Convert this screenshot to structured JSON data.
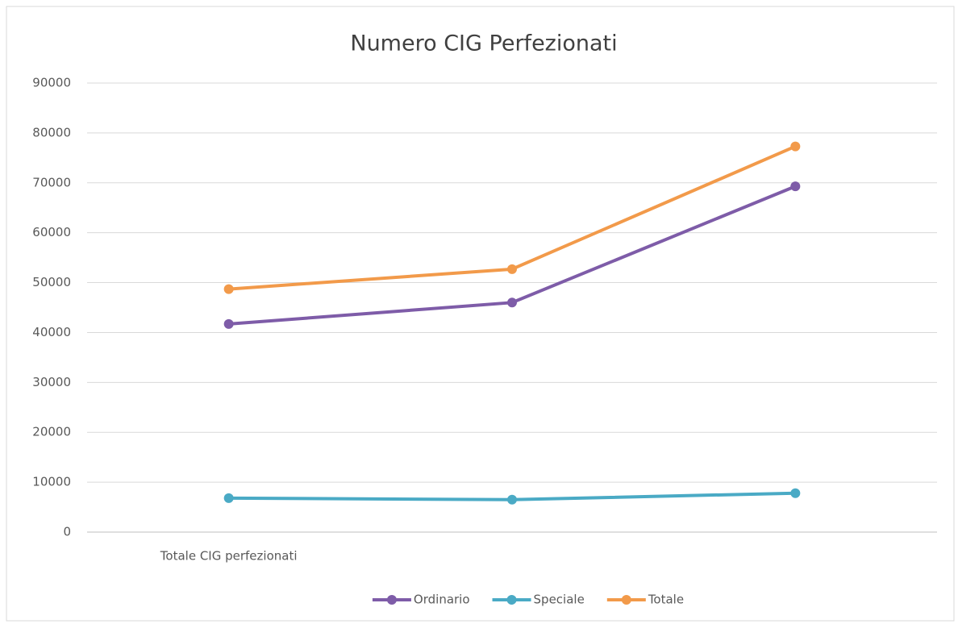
{
  "chart_data": {
    "type": "line",
    "title": "Numero CIG Perfezionati",
    "categories": [
      "Totale CIG perfezionati",
      null,
      null
    ],
    "series": [
      {
        "name": "Ordinario",
        "color": "#7e5ca8",
        "values": [
          41700,
          46000,
          69300
        ]
      },
      {
        "name": "Speciale",
        "color": "#4aaac5",
        "values": [
          6800,
          6500,
          7800
        ]
      },
      {
        "name": "Totale",
        "color": "#f29a4a",
        "values": [
          48700,
          52700,
          77300
        ]
      }
    ],
    "ylim": [
      0,
      90000
    ],
    "yticks": [
      0,
      10000,
      20000,
      30000,
      40000,
      50000,
      60000,
      70000,
      80000,
      90000
    ],
    "grid": true,
    "legend": "bottom"
  }
}
